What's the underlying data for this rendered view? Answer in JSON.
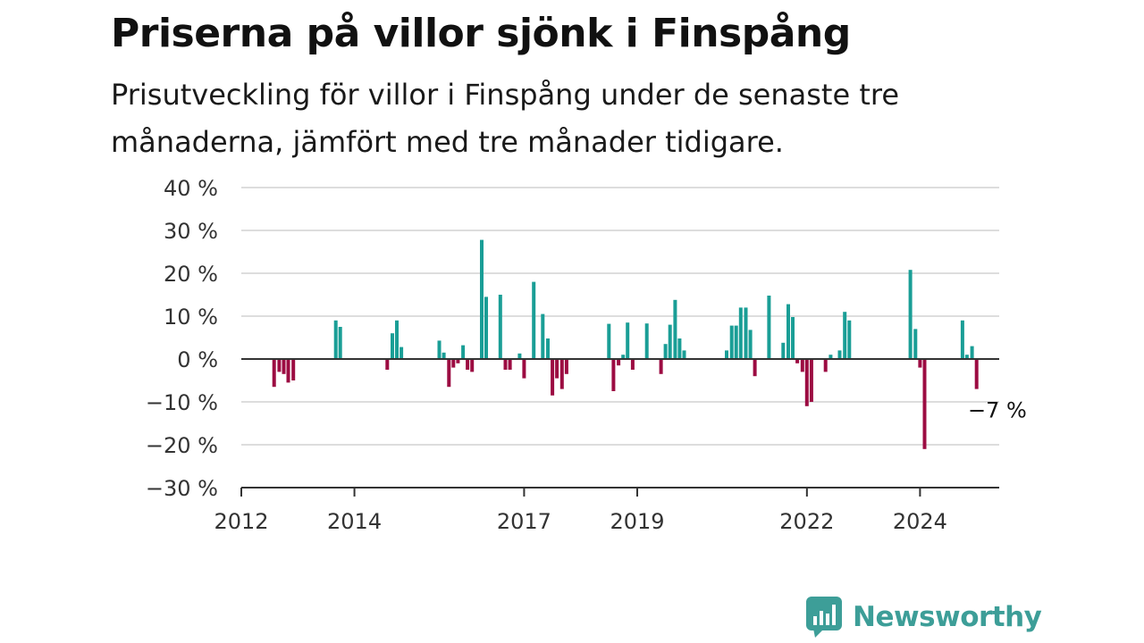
{
  "brand": {
    "name": "Newsworthy",
    "logo_icon": "bar-chart-speech-bubble-icon",
    "color": "#3d9e98"
  },
  "chart_data": {
    "type": "bar",
    "title": "Priserna på villor sjönk i Finspång",
    "subtitle": "Prisutveckling för villor i Finspång under de senaste tre månaderna, jämfört med tre månader tidigare.",
    "y_unit": "%",
    "ylim": [
      -30,
      40
    ],
    "y_ticks": [
      40,
      30,
      20,
      10,
      0,
      -10,
      -20,
      -30
    ],
    "y_tick_labels": [
      "40 %",
      "30 %",
      "20 %",
      "10 %",
      "0 %",
      "−10 %",
      "−20 %",
      "−30 %"
    ],
    "x_range": [
      2012.0,
      2025.4
    ],
    "x_ticks": [
      2012,
      2014,
      2017,
      2019,
      2022,
      2024
    ],
    "x_tick_labels": [
      "2012",
      "2014",
      "2017",
      "2019",
      "2022",
      "2024"
    ],
    "grid": true,
    "colors": {
      "positive": "#1a9e96",
      "negative": "#9c0c42",
      "grid": "#dddddd",
      "axis": "#333333"
    },
    "annotation": {
      "text": "−7 %",
      "x": 2024.83,
      "y": -7
    },
    "series": [
      {
        "x": [
          2012.58,
          2012.67,
          2012.75,
          2012.83,
          2012.92,
          2013.0,
          2013.67,
          2013.75,
          2014.58,
          2014.67,
          2014.75,
          2014.83,
          2015.5,
          2015.58,
          2015.67,
          2015.75,
          2015.83,
          2015.92,
          2016.0,
          2016.08,
          2016.17,
          2016.25,
          2016.33,
          2016.58,
          2016.67,
          2016.75,
          2016.83,
          2016.92,
          2017.0,
          2017.17,
          2017.33,
          2017.42,
          2017.5,
          2017.58,
          2017.67,
          2017.75,
          2017.83,
          2017.92,
          2018.5,
          2018.58,
          2018.67,
          2018.75,
          2018.83,
          2018.92,
          2019.17,
          2019.42,
          2019.5,
          2019.58,
          2019.67,
          2019.75,
          2019.83,
          2020.58,
          2020.67,
          2020.75,
          2020.83,
          2020.92,
          2021.0,
          2021.08,
          2021.33,
          2021.58,
          2021.67,
          2021.75,
          2021.83,
          2021.92,
          2022.0,
          2022.08,
          2022.17,
          2022.33,
          2022.42,
          2022.58,
          2022.67,
          2022.75,
          2023.83,
          2023.92,
          2024.0,
          2024.08,
          2024.75,
          2024.83,
          2024.92,
          2025.0
        ],
        "values": [
          -6.5,
          -3.0,
          -3.5,
          -5.5,
          -5.0,
          0,
          9.0,
          7.5,
          -2.5,
          6.0,
          9.0,
          2.8,
          4.3,
          1.5,
          -6.5,
          -2.0,
          -1.0,
          3.2,
          -2.5,
          -3.0,
          0,
          27.8,
          14.5,
          15.0,
          -2.5,
          -2.5,
          0,
          1.3,
          -4.5,
          18.0,
          10.5,
          4.8,
          -8.5,
          -4.5,
          -7.0,
          -3.5,
          0,
          0,
          8.2,
          -7.5,
          -1.5,
          1.0,
          8.5,
          -2.5,
          8.3,
          -3.5,
          3.5,
          8.0,
          13.8,
          4.8,
          2.0,
          2.0,
          7.8,
          7.8,
          12.0,
          12.0,
          6.8,
          -4.0,
          14.8,
          3.8,
          12.8,
          9.8,
          -1.0,
          -3.0,
          -11.0,
          -10.0,
          0,
          -3.0,
          1.0,
          2.0,
          11.0,
          9.0,
          20.8,
          7.0,
          -2.0,
          -21.0,
          9.0,
          1.0,
          3.0,
          -7.0
        ]
      }
    ]
  }
}
